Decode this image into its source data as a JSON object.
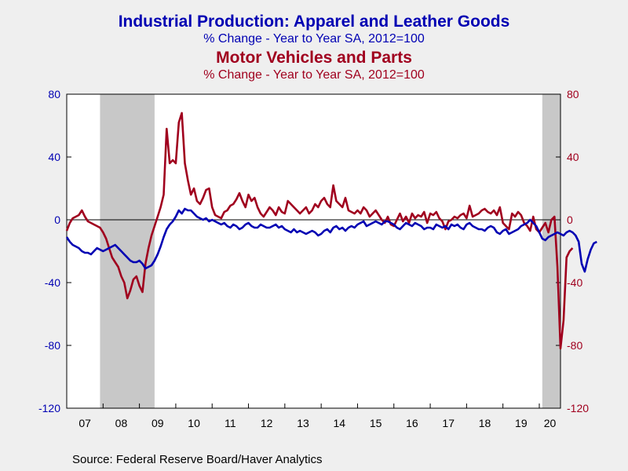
{
  "colors": {
    "series1": "#0000b3",
    "series2": "#a0001e",
    "recession": "#c8c8c8",
    "plot_bg": "#ffffff",
    "page_bg": "#efefef"
  },
  "titles": {
    "series1_title": "Industrial Production: Apparel and Leather Goods",
    "series1_subtitle": "% Change - Year to Year    SA, 2012=100",
    "series2_title": "Motor Vehicles and Parts",
    "series2_subtitle": "% Change - Year to Year    SA, 2012=100"
  },
  "source": "Source:  Federal Reserve Board/Haver Analytics",
  "chart_data": {
    "type": "line",
    "x_start": "2007-01",
    "x_end": "2020-08",
    "xtick_labels": [
      "07",
      "08",
      "09",
      "10",
      "11",
      "12",
      "13",
      "14",
      "15",
      "16",
      "17",
      "18",
      "19",
      "20"
    ],
    "yleft": {
      "lim": [
        -120,
        80
      ],
      "ticks": [
        80,
        40,
        0,
        -40,
        -80,
        -120
      ]
    },
    "yright": {
      "lim": [
        -120,
        80
      ],
      "ticks": [
        80,
        40,
        0,
        -40,
        -80,
        -120
      ]
    },
    "recessions": [
      [
        "2007-12",
        "2009-06"
      ],
      [
        "2020-02",
        "2020-08"
      ]
    ],
    "series": [
      {
        "name": "Industrial Production: Apparel and Leather Goods",
        "axis": "left",
        "start": "2007-01",
        "values": [
          -11,
          -14,
          -16,
          -17,
          -18,
          -20,
          -21,
          -21,
          -22,
          -20,
          -18,
          -19,
          -20,
          -19,
          -18,
          -17,
          -16,
          -18,
          -20,
          -22,
          -24,
          -26,
          -27,
          -27,
          -26,
          -28,
          -31,
          -30,
          -29,
          -26,
          -22,
          -17,
          -11,
          -6,
          -3,
          -1,
          2,
          6,
          4,
          7,
          6,
          6,
          4,
          2,
          1,
          0,
          1,
          -1,
          0,
          -1,
          -2,
          -3,
          -2,
          -4,
          -5,
          -3,
          -4,
          -6,
          -5,
          -3,
          -2,
          -4,
          -5,
          -5,
          -3,
          -4,
          -5,
          -5,
          -4,
          -3,
          -5,
          -4,
          -6,
          -7,
          -8,
          -6,
          -8,
          -7,
          -8,
          -9,
          -8,
          -7,
          -8,
          -10,
          -9,
          -7,
          -6,
          -8,
          -5,
          -4,
          -6,
          -5,
          -7,
          -5,
          -4,
          -5,
          -3,
          -2,
          -1,
          -4,
          -3,
          -2,
          -1,
          -2,
          -3,
          -1,
          -1,
          -2,
          -3,
          -5,
          -6,
          -4,
          -2,
          -3,
          -4,
          -2,
          -3,
          -4,
          -6,
          -5,
          -5,
          -6,
          -3,
          -4,
          -5,
          -4,
          -6,
          -3,
          -4,
          -3,
          -5,
          -6,
          -3,
          -2,
          -4,
          -5,
          -6,
          -6,
          -7,
          -5,
          -4,
          -5,
          -8,
          -9,
          -7,
          -6,
          -9,
          -8,
          -7,
          -6,
          -4,
          -3,
          -2,
          0,
          -2,
          -4,
          -8,
          -12,
          -13,
          -11,
          -10,
          -9,
          -8,
          -9,
          -10,
          -8,
          -7,
          -8,
          -10,
          -14,
          -28,
          -33,
          -25,
          -19,
          -15,
          -14
        ]
      },
      {
        "name": "Motor Vehicles and Parts",
        "axis": "right",
        "start": "2007-01",
        "values": [
          -7,
          -2,
          1,
          2,
          3,
          6,
          2,
          -1,
          -2,
          -3,
          -4,
          -5,
          -8,
          -12,
          -18,
          -24,
          -27,
          -30,
          -36,
          -40,
          -50,
          -45,
          -38,
          -36,
          -42,
          -46,
          -28,
          -18,
          -10,
          -4,
          2,
          8,
          16,
          58,
          36,
          38,
          36,
          62,
          68,
          36,
          25,
          16,
          20,
          12,
          10,
          14,
          19,
          20,
          8,
          3,
          2,
          1,
          5,
          6,
          9,
          10,
          13,
          17,
          12,
          8,
          16,
          12,
          14,
          8,
          4,
          2,
          5,
          8,
          6,
          3,
          8,
          5,
          4,
          12,
          10,
          8,
          6,
          4,
          6,
          8,
          4,
          6,
          10,
          8,
          12,
          14,
          10,
          8,
          22,
          12,
          10,
          8,
          14,
          6,
          5,
          4,
          6,
          4,
          8,
          6,
          2,
          4,
          6,
          3,
          0,
          -2,
          2,
          -3,
          -4,
          0,
          4,
          -1,
          2,
          -2,
          4,
          1,
          3,
          2,
          5,
          -2,
          4,
          3,
          5,
          1,
          -1,
          -6,
          -1,
          0,
          2,
          1,
          3,
          4,
          1,
          9,
          2,
          3,
          4,
          6,
          7,
          5,
          4,
          6,
          3,
          8,
          -2,
          -4,
          -6,
          4,
          2,
          5,
          3,
          -2,
          -4,
          -7,
          2,
          -6,
          -8,
          -5,
          -2,
          -8,
          0,
          2,
          -30,
          -82,
          -64,
          -24,
          -20,
          -18
        ]
      }
    ]
  }
}
